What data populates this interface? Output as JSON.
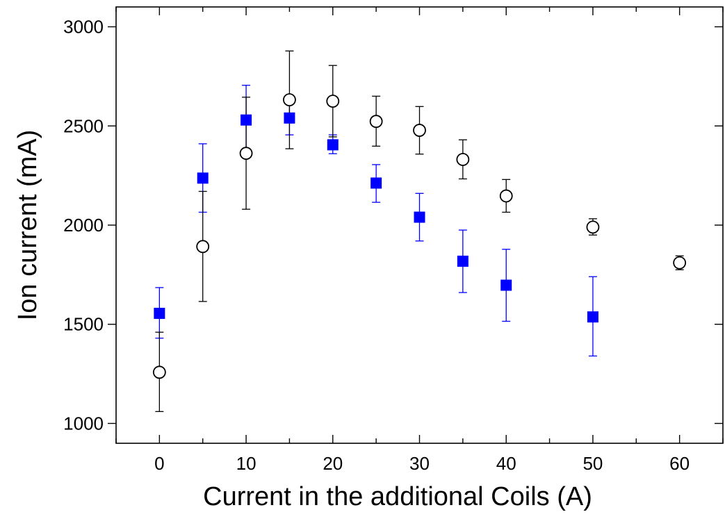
{
  "chart_data": {
    "type": "scatter",
    "title": "",
    "xlabel": "Current in the additional Coils (A)",
    "ylabel": "Ion current (mA)",
    "xlim": [
      -5,
      65
    ],
    "ylim": [
      900,
      3100
    ],
    "xticks": [
      0,
      10,
      20,
      30,
      40,
      50,
      60
    ],
    "yticks": [
      1000,
      1500,
      2000,
      2500,
      3000
    ],
    "grid": false,
    "legend": "none",
    "series": [
      {
        "marker": "filled-square",
        "color": "#0000ff",
        "errorbar_color": "#0000ff",
        "points": [
          {
            "x": 0,
            "y": 1555,
            "lo": 1430,
            "hi": 1685
          },
          {
            "x": 5,
            "y": 2237,
            "lo": 2065,
            "hi": 2410
          },
          {
            "x": 10,
            "y": 2530,
            "lo": 2355,
            "hi": 2705
          },
          {
            "x": 15,
            "y": 2540,
            "lo": 2455,
            "hi": 2640
          },
          {
            "x": 20,
            "y": 2405,
            "lo": 2360,
            "hi": 2455
          },
          {
            "x": 25,
            "y": 2212,
            "lo": 2115,
            "hi": 2305
          },
          {
            "x": 30,
            "y": 2040,
            "lo": 1920,
            "hi": 2160
          },
          {
            "x": 35,
            "y": 1818,
            "lo": 1660,
            "hi": 1975
          },
          {
            "x": 40,
            "y": 1697,
            "lo": 1515,
            "hi": 1878
          },
          {
            "x": 50,
            "y": 1537,
            "lo": 1340,
            "hi": 1740
          }
        ]
      },
      {
        "marker": "open-circle",
        "color": "#000000",
        "errorbar_color": "#000000",
        "points": [
          {
            "x": 0,
            "y": 1258,
            "lo": 1060,
            "hi": 1460
          },
          {
            "x": 5,
            "y": 1892,
            "lo": 1615,
            "hi": 2170
          },
          {
            "x": 10,
            "y": 2362,
            "lo": 2080,
            "hi": 2645
          },
          {
            "x": 15,
            "y": 2632,
            "lo": 2385,
            "hi": 2878
          },
          {
            "x": 20,
            "y": 2625,
            "lo": 2445,
            "hi": 2805
          },
          {
            "x": 25,
            "y": 2523,
            "lo": 2398,
            "hi": 2650
          },
          {
            "x": 30,
            "y": 2478,
            "lo": 2358,
            "hi": 2598
          },
          {
            "x": 35,
            "y": 2331,
            "lo": 2233,
            "hi": 2430
          },
          {
            "x": 40,
            "y": 2147,
            "lo": 2065,
            "hi": 2230
          },
          {
            "x": 50,
            "y": 1990,
            "lo": 1950,
            "hi": 2032
          },
          {
            "x": 60,
            "y": 1810,
            "lo": 1775,
            "hi": 1845
          }
        ]
      }
    ]
  }
}
